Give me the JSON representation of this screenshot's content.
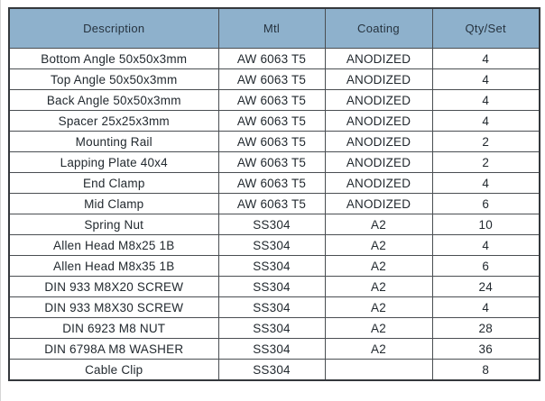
{
  "table": {
    "headers": [
      "Description",
      "Mtl",
      "Coating",
      "Qty/Set"
    ],
    "rows": [
      {
        "description": "Bottom Angle 50x50x3mm",
        "mtl": "AW 6063 T5",
        "coating": "ANODIZED",
        "qty": "4"
      },
      {
        "description": "Top Angle 50x50x3mm",
        "mtl": "AW 6063 T5",
        "coating": "ANODIZED",
        "qty": "4"
      },
      {
        "description": "Back Angle 50x50x3mm",
        "mtl": "AW 6063 T5",
        "coating": "ANODIZED",
        "qty": "4"
      },
      {
        "description": "Spacer 25x25x3mm",
        "mtl": "AW 6063 T5",
        "coating": "ANODIZED",
        "qty": "4"
      },
      {
        "description": "Mounting Rail",
        "mtl": "AW 6063 T5",
        "coating": "ANODIZED",
        "qty": "2"
      },
      {
        "description": "Lapping Plate 40x4",
        "mtl": "AW 6063 T5",
        "coating": "ANODIZED",
        "qty": "2"
      },
      {
        "description": "End Clamp",
        "mtl": "AW 6063 T5",
        "coating": "ANODIZED",
        "qty": "4"
      },
      {
        "description": "Mid Clamp",
        "mtl": "AW 6063 T5",
        "coating": "ANODIZED",
        "qty": "6"
      },
      {
        "description": "Spring Nut",
        "mtl": "SS304",
        "coating": "A2",
        "qty": "10"
      },
      {
        "description": "Allen Head M8x25 1B",
        "mtl": "SS304",
        "coating": "A2",
        "qty": "4"
      },
      {
        "description": "Allen Head M8x35 1B",
        "mtl": "SS304",
        "coating": "A2",
        "qty": "6"
      },
      {
        "description": "DIN 933 M8X20 SCREW",
        "mtl": "SS304",
        "coating": "A2",
        "qty": "24"
      },
      {
        "description": "DIN 933 M8X30 SCREW",
        "mtl": "SS304",
        "coating": "A2",
        "qty": "4"
      },
      {
        "description": "DIN 6923 M8 NUT",
        "mtl": "SS304",
        "coating": "A2",
        "qty": "28"
      },
      {
        "description": "DIN 6798A M8 WASHER",
        "mtl": "SS304",
        "coating": "A2",
        "qty": "36"
      },
      {
        "description": "Cable Clip",
        "mtl": "SS304",
        "coating": "",
        "qty": "8"
      }
    ],
    "colors": {
      "header_bg": "#8eb1cc",
      "header_text": "#26333f",
      "body_text": "#22292f",
      "border": "#34383c"
    }
  }
}
